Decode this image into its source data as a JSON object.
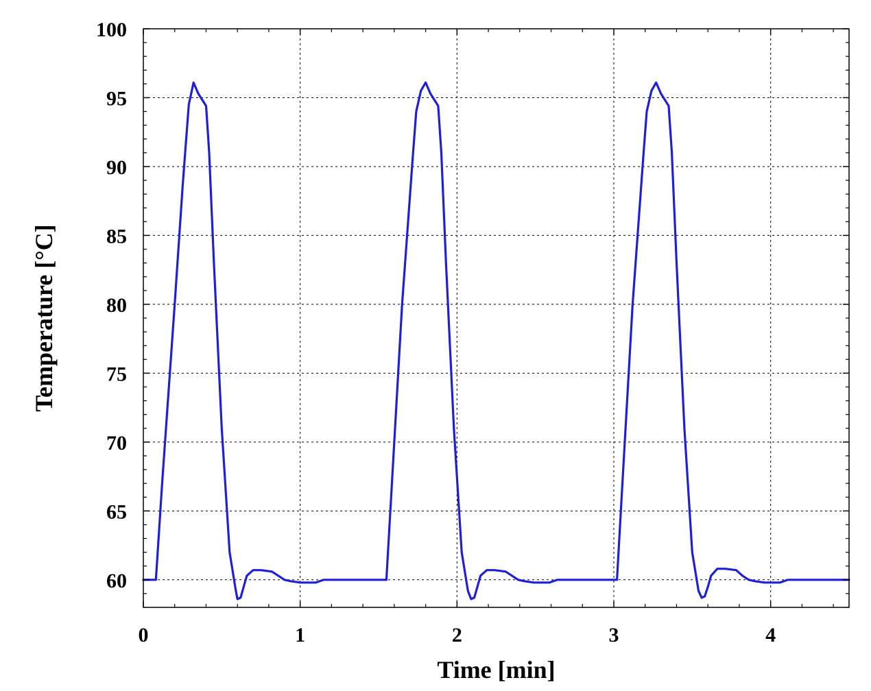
{
  "chart_data": {
    "type": "line",
    "title": "",
    "xlabel": "Time [min]",
    "ylabel": "Temperature [°C]",
    "xlim": [
      0,
      4.5
    ],
    "ylim": [
      58,
      100
    ],
    "xticks": [
      0,
      1,
      2,
      3,
      4
    ],
    "yticks": [
      60,
      65,
      70,
      75,
      80,
      85,
      90,
      95,
      100
    ],
    "grid": true,
    "legend": "none",
    "series": [
      {
        "color": "#1f1fd6",
        "x": [
          0,
          0.08,
          0.12,
          0.2,
          0.25,
          0.27,
          0.29,
          0.32,
          0.35,
          0.4,
          0.42,
          0.45,
          0.5,
          0.55,
          0.59,
          0.6,
          0.62,
          0.64,
          0.66,
          0.7,
          0.75,
          0.82,
          0.86,
          0.9,
          0.94,
          1.0,
          1.1,
          1.15,
          1.2,
          1.55,
          1.58,
          1.65,
          1.72,
          1.74,
          1.77,
          1.8,
          1.83,
          1.88,
          1.9,
          1.93,
          1.98,
          2.03,
          2.07,
          2.09,
          2.11,
          2.13,
          2.15,
          2.19,
          2.24,
          2.31,
          2.35,
          2.39,
          2.43,
          2.49,
          2.59,
          2.64,
          2.69,
          3.02,
          3.05,
          3.12,
          3.19,
          3.21,
          3.24,
          3.27,
          3.3,
          3.35,
          3.37,
          3.4,
          3.45,
          3.5,
          3.54,
          3.56,
          3.58,
          3.6,
          3.62,
          3.66,
          3.71,
          3.78,
          3.82,
          3.86,
          3.9,
          3.96,
          4.06,
          4.11,
          4.16,
          4.5
        ],
        "y": [
          60,
          60,
          67,
          80,
          88.5,
          91.5,
          94.5,
          96.1,
          95.3,
          94.4,
          91,
          83,
          71,
          62,
          59.2,
          58.6,
          58.7,
          59.5,
          60.3,
          60.7,
          60.7,
          60.6,
          60.3,
          60,
          59.9,
          59.8,
          59.8,
          60,
          60,
          60,
          66,
          80,
          91,
          94,
          95.5,
          96.1,
          95.3,
          94.4,
          91,
          83,
          71,
          62,
          59.2,
          58.6,
          58.7,
          59.5,
          60.3,
          60.7,
          60.7,
          60.6,
          60.3,
          60,
          59.9,
          59.8,
          59.8,
          60,
          60,
          60,
          66,
          80,
          91,
          94,
          95.5,
          96.1,
          95.3,
          94.4,
          91,
          83,
          71,
          62,
          59.2,
          58.7,
          58.8,
          59.5,
          60.3,
          60.8,
          60.8,
          60.7,
          60.3,
          60,
          59.9,
          59.8,
          59.8,
          60,
          60,
          60
        ]
      }
    ]
  }
}
